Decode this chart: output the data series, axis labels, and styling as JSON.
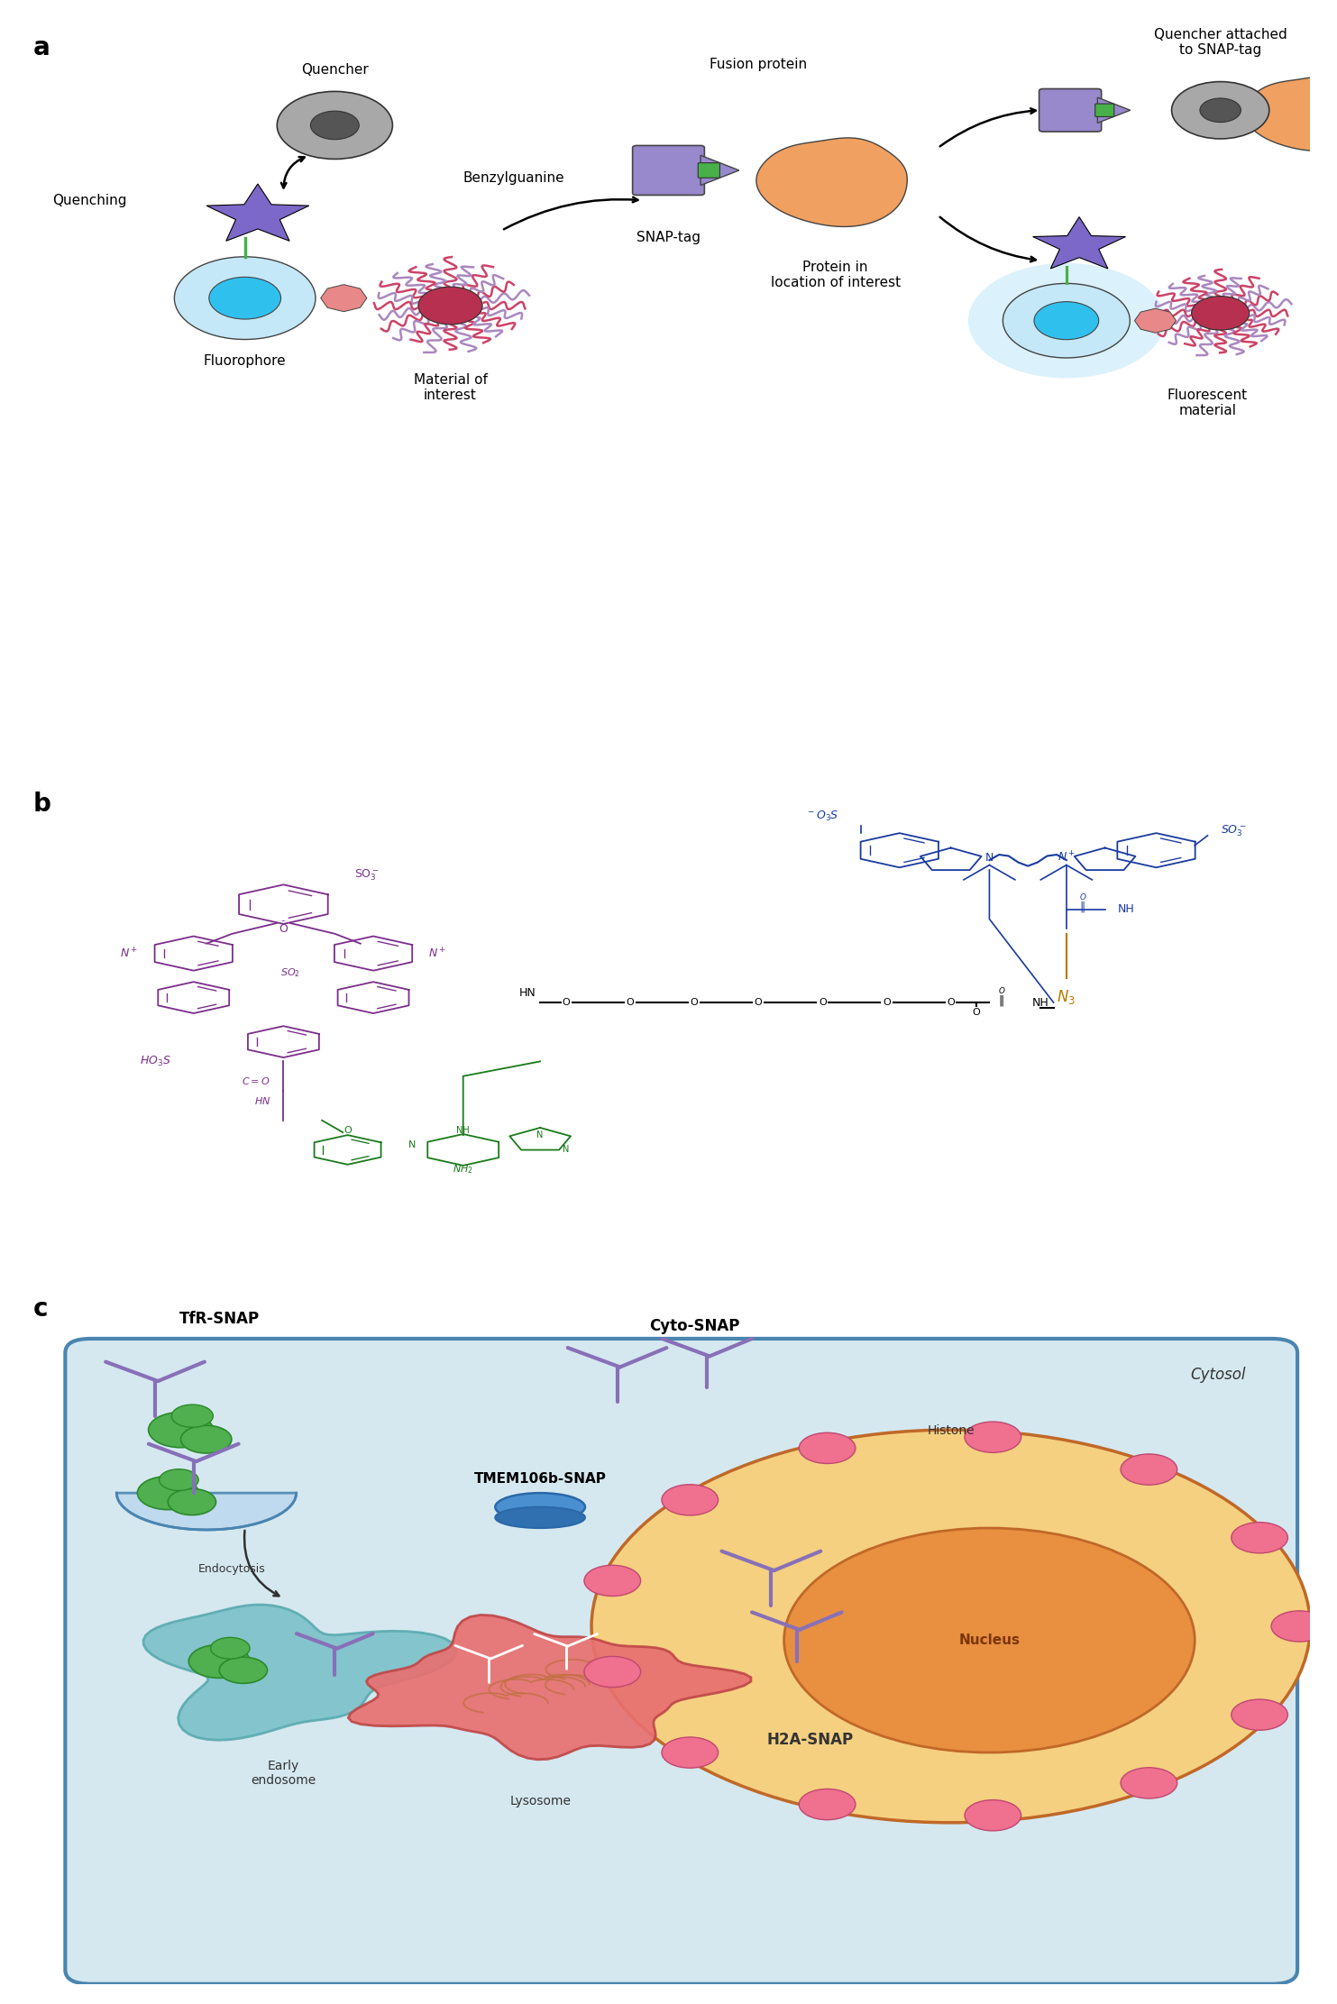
{
  "bg_color": "#ffffff",
  "panel_a": {
    "labels": {
      "quenching": "Quenching",
      "quencher": "Quencher",
      "fluorophore": "Fluorophore",
      "benzylguanine": "Benzylguanine",
      "fusion_protein": "Fusion protein",
      "snap_tag": "SNAP-tag",
      "protein_in_loc": "Protein in\nlocation of interest",
      "material_of_interest": "Material of\ninterest",
      "quencher_attached": "Quencher attached\nto SNAP-tag",
      "fluorescent_material": "Fluorescent\nmaterial"
    },
    "colors": {
      "star": "#7B68C8",
      "quencher_gray": "#A0A0A0",
      "quencher_dark": "#606060",
      "fluoro_outer": "#C0E8F8",
      "fluoro_inner": "#40C8F0",
      "pink_oct": "#E89090",
      "green_link": "#50B050",
      "snap_purple": "#9B8DC8",
      "protein_orange": "#F0A060",
      "mat_pink": "#D04870",
      "mat_purple": "#B090C0",
      "glow_blue": "#A0D8F0",
      "arrow": "#000000"
    }
  },
  "panel_b": {
    "colors": {
      "rhodamine": "#7B2D8B",
      "cy5": "#1A3AA0",
      "linker_green": "#1A7A1A",
      "azide_orange": "#BB7700"
    }
  },
  "panel_c": {
    "cell_bg": "#D5E8F0",
    "cell_border": "#5A8AA5",
    "labels": {
      "tfr_snap": "TfR-SNAP",
      "cytosol": "Cytosol",
      "cyto_snap": "Cyto-SNAP",
      "endocytosis": "Endocytosis",
      "early_endosome": "Early\nendosome",
      "tmem106b": "TMEM106b-SNAP",
      "lysosome": "Lysosome",
      "h2a_snap": "H2A-SNAP",
      "histone": "Histone",
      "nucleus": "Nucleus"
    },
    "colors": {
      "membrane_blue": "#6AAAD5",
      "membrane_dark": "#4A85B0",
      "endosome_teal": "#5AAAB0",
      "early_endo_fill": "#70B8C0",
      "lysosome_pink": "#E87070",
      "lysosome_border": "#C04848",
      "nucleus_fill": "#F0C870",
      "nucleus_border": "#C06828",
      "inner_nucleus": "#E89040",
      "chromatin": "#8B4010",
      "histone_pink": "#F07090",
      "histone_border": "#C04870",
      "green_protein": "#50B050",
      "green_border": "#2A8A2A",
      "purple_y": "#8870B8",
      "tmem_blue": "#4A90D0",
      "dot_brown": "#C07040",
      "arrow_dark": "#303030"
    }
  }
}
